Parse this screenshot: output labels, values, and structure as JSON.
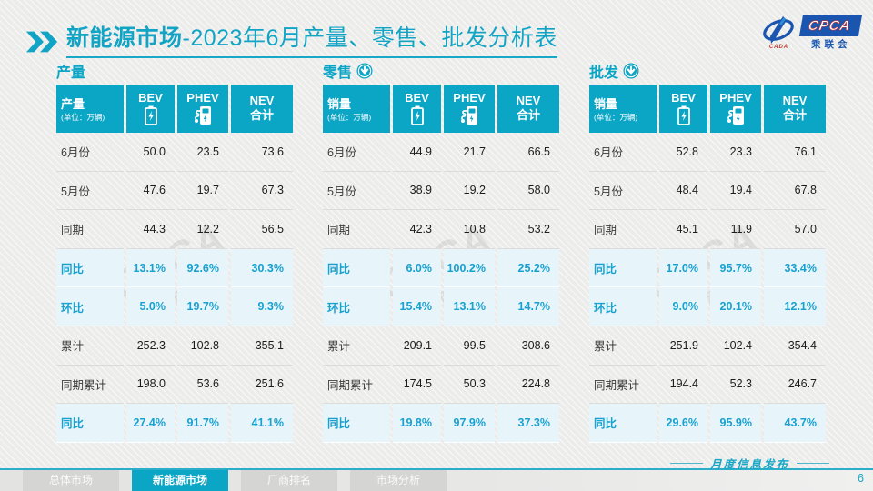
{
  "page": {
    "title_bold": "新能源市场",
    "title_rest": "-2023年6月产量、零售、批发分析表",
    "footer_caption": "月度信息发布",
    "page_number": "6"
  },
  "logo": {
    "cpca": "CPCA",
    "org_cn": "乘联会",
    "cada": "CADA"
  },
  "colors": {
    "teal": "#0ba5c5",
    "highlight_bg": "#e7f5fa",
    "highlight_text": "#18a0cf",
    "logo_blue": "#1a55b0"
  },
  "table_header": {
    "unit": "(单位：万辆)",
    "col_bev": "BEV",
    "col_phev": "PHEV",
    "col_nev_line1": "NEV",
    "col_nev_line2": "合计"
  },
  "tables": [
    {
      "section": "产量",
      "arrow": false,
      "row_header_label": "产量",
      "rows": [
        {
          "label": "6月份",
          "values": [
            "50.0",
            "23.5",
            "73.6"
          ],
          "highlight": false
        },
        {
          "label": "5月份",
          "values": [
            "47.6",
            "19.7",
            "67.3"
          ],
          "highlight": false
        },
        {
          "label": "同期",
          "values": [
            "44.3",
            "12.2",
            "56.5"
          ],
          "highlight": false
        },
        {
          "label": "同比",
          "values": [
            "13.1%",
            "92.6%",
            "30.3%"
          ],
          "highlight": true
        },
        {
          "label": "环比",
          "values": [
            "5.0%",
            "19.7%",
            "9.3%"
          ],
          "highlight": true
        },
        {
          "label": "累计",
          "values": [
            "252.3",
            "102.8",
            "355.1"
          ],
          "highlight": false
        },
        {
          "label": "同期累计",
          "values": [
            "198.0",
            "53.6",
            "251.6"
          ],
          "highlight": false
        },
        {
          "label": "同比",
          "values": [
            "27.4%",
            "91.7%",
            "41.1%"
          ],
          "highlight": true
        }
      ]
    },
    {
      "section": "零售",
      "arrow": true,
      "row_header_label": "销量",
      "rows": [
        {
          "label": "6月份",
          "values": [
            "44.9",
            "21.7",
            "66.5"
          ],
          "highlight": false
        },
        {
          "label": "5月份",
          "values": [
            "38.9",
            "19.2",
            "58.0"
          ],
          "highlight": false
        },
        {
          "label": "同期",
          "values": [
            "42.3",
            "10.8",
            "53.2"
          ],
          "highlight": false
        },
        {
          "label": "同比",
          "values": [
            "6.0%",
            "100.2%",
            "25.2%"
          ],
          "highlight": true
        },
        {
          "label": "环比",
          "values": [
            "15.4%",
            "13.1%",
            "14.7%"
          ],
          "highlight": true
        },
        {
          "label": "累计",
          "values": [
            "209.1",
            "99.5",
            "308.6"
          ],
          "highlight": false
        },
        {
          "label": "同期累计",
          "values": [
            "174.5",
            "50.3",
            "224.8"
          ],
          "highlight": false
        },
        {
          "label": "同比",
          "values": [
            "19.8%",
            "97.9%",
            "37.3%"
          ],
          "highlight": true
        }
      ]
    },
    {
      "section": "批发",
      "arrow": true,
      "row_header_label": "销量",
      "rows": [
        {
          "label": "6月份",
          "values": [
            "52.8",
            "23.3",
            "76.1"
          ],
          "highlight": false
        },
        {
          "label": "5月份",
          "values": [
            "48.4",
            "19.4",
            "67.8"
          ],
          "highlight": false
        },
        {
          "label": "同期",
          "values": [
            "45.1",
            "11.9",
            "57.0"
          ],
          "highlight": false
        },
        {
          "label": "同比",
          "values": [
            "17.0%",
            "95.7%",
            "33.4%"
          ],
          "highlight": true
        },
        {
          "label": "环比",
          "values": [
            "9.0%",
            "20.1%",
            "12.1%"
          ],
          "highlight": true
        },
        {
          "label": "累计",
          "values": [
            "251.9",
            "102.4",
            "354.4"
          ],
          "highlight": false
        },
        {
          "label": "同期累计",
          "values": [
            "194.4",
            "52.3",
            "246.7"
          ],
          "highlight": false
        },
        {
          "label": "同比",
          "values": [
            "29.6%",
            "95.9%",
            "43.7%"
          ],
          "highlight": true
        }
      ]
    }
  ],
  "footer_nav": [
    {
      "label": "总体市场",
      "active": false
    },
    {
      "label": "新能源市场",
      "active": true
    },
    {
      "label": "厂商排名",
      "active": false
    },
    {
      "label": "市场分析",
      "active": false
    }
  ]
}
